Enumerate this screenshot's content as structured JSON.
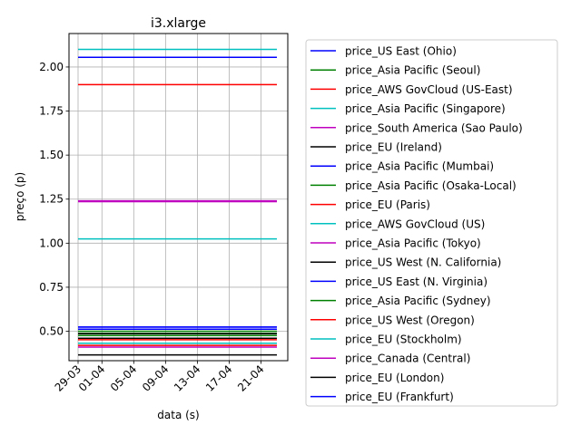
{
  "chart_data": {
    "type": "line",
    "title": "i3.xlarge",
    "xlabel": "data (s)",
    "ylabel": "preço (p)",
    "x_range": [
      "2019-03-29",
      "2019-04-23"
    ],
    "ylim": [
      0.333,
      2.19
    ],
    "y_ticks": [
      0.5,
      0.75,
      1.0,
      1.25,
      1.5,
      1.75,
      2.0
    ],
    "y_tick_labels": [
      "0.50",
      "0.75",
      "1.00",
      "1.25",
      "1.50",
      "1.75",
      "2.00"
    ],
    "x_ticks": [
      "2019-03-29",
      "2019-04-01",
      "2019-04-05",
      "2019-04-09",
      "2019-04-13",
      "2019-04-17",
      "2019-04-21"
    ],
    "x_tick_labels": [
      "29-03",
      "01-04",
      "05-04",
      "09-04",
      "13-04",
      "17-04",
      "21-04"
    ],
    "grid": true,
    "legend_position": "outside-right",
    "series": [
      {
        "name": "price_US East (Ohio)",
        "color": "#0000ff",
        "values": [
          0.524,
          0.524
        ]
      },
      {
        "name": "price_Asia Pacific (Seoul)",
        "color": "#008000",
        "values": [
          0.488,
          0.488
        ]
      },
      {
        "name": "price_AWS GovCloud (US-East)",
        "color": "#ff0000",
        "values": [
          1.9,
          1.9
        ]
      },
      {
        "name": "price_Asia Pacific (Singapore)",
        "color": "#00bfbf",
        "values": [
          2.1,
          2.1
        ]
      },
      {
        "name": "price_South America (Sao Paulo)",
        "color": "#bf00bf",
        "values": [
          1.24,
          1.24
        ]
      },
      {
        "name": "price_EU (Ireland)",
        "color": "#000000",
        "values": [
          0.486,
          0.486
        ]
      },
      {
        "name": "price_Asia Pacific (Mumbai)",
        "color": "#0000ff",
        "values": [
          2.055,
          2.055
        ]
      },
      {
        "name": "price_Asia Pacific (Osaka-Local)",
        "color": "#008000",
        "values": [
          0.476,
          0.476
        ]
      },
      {
        "name": "price_EU (Paris)",
        "color": "#ff0000",
        "values": [
          0.452,
          0.452
        ]
      },
      {
        "name": "price_AWS GovCloud (US)",
        "color": "#00bfbf",
        "values": [
          1.024,
          1.024
        ]
      },
      {
        "name": "price_Asia Pacific (Tokyo)",
        "color": "#bf00bf",
        "values": [
          1.236,
          1.236
        ]
      },
      {
        "name": "price_US West (N. California)",
        "color": "#000000",
        "values": [
          0.366,
          0.366
        ]
      },
      {
        "name": "price_US East (N. Virginia)",
        "color": "#0000ff",
        "values": [
          0.512,
          0.512
        ]
      },
      {
        "name": "price_Asia Pacific (Sydney)",
        "color": "#008000",
        "values": [
          0.5,
          0.5
        ]
      },
      {
        "name": "price_US West (Oregon)",
        "color": "#ff0000",
        "values": [
          0.42,
          0.42
        ]
      },
      {
        "name": "price_EU (Stockholm)",
        "color": "#00bfbf",
        "values": [
          0.432,
          0.432
        ]
      },
      {
        "name": "price_Canada (Central)",
        "color": "#bf00bf",
        "values": [
          0.41,
          0.41
        ]
      },
      {
        "name": "price_EU (London)",
        "color": "#000000",
        "values": [
          0.46,
          0.46
        ]
      },
      {
        "name": "price_EU (Frankfurt)",
        "color": "#0000ff",
        "values": [
          0.524,
          0.524
        ]
      }
    ]
  }
}
